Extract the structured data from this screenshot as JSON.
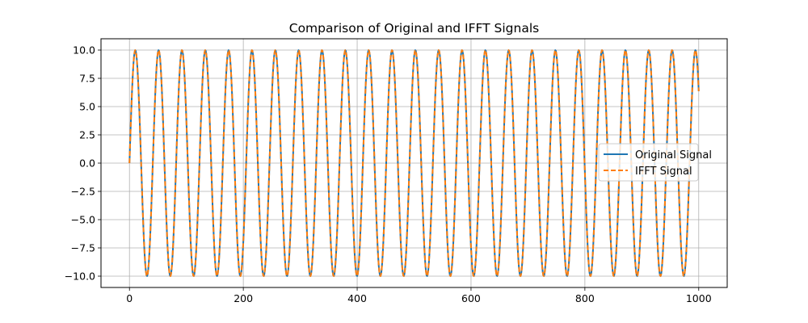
{
  "chart_data": {
    "type": "line",
    "title": "Comparison of Original and IFFT Signals",
    "xlabel": "",
    "ylabel": "",
    "xlim": [
      -50,
      1050
    ],
    "ylim": [
      -11,
      11
    ],
    "x_ticks": [
      0,
      200,
      400,
      600,
      800,
      1000
    ],
    "x_tick_labels": [
      "0",
      "200",
      "400",
      "600",
      "800",
      "1000"
    ],
    "y_ticks": [
      10.0,
      7.5,
      5.0,
      2.5,
      0.0,
      -2.5,
      -5.0,
      -7.5,
      -10.0
    ],
    "y_tick_labels": [
      "10.0",
      "7.5",
      "5.0",
      "2.5",
      "0.0",
      "−2.5",
      "−5.0",
      "−7.5",
      "−10.0"
    ],
    "grid": true,
    "legend_position": "center-right",
    "series": [
      {
        "name": "Original Signal",
        "color": "#1f77b4",
        "line_style": "solid",
        "function": "10*sin(2*pi*x/41)",
        "amplitude": 10,
        "period": 41,
        "x_range": [
          0,
          1000
        ],
        "sample_step": 1
      },
      {
        "name": "IFFT Signal",
        "color": "#ff7f0e",
        "line_style": "dashed",
        "function": "10*sin(2*pi*x/41)",
        "amplitude": 10,
        "period": 41,
        "x_range": [
          0,
          1000
        ],
        "sample_step": 1
      }
    ]
  }
}
